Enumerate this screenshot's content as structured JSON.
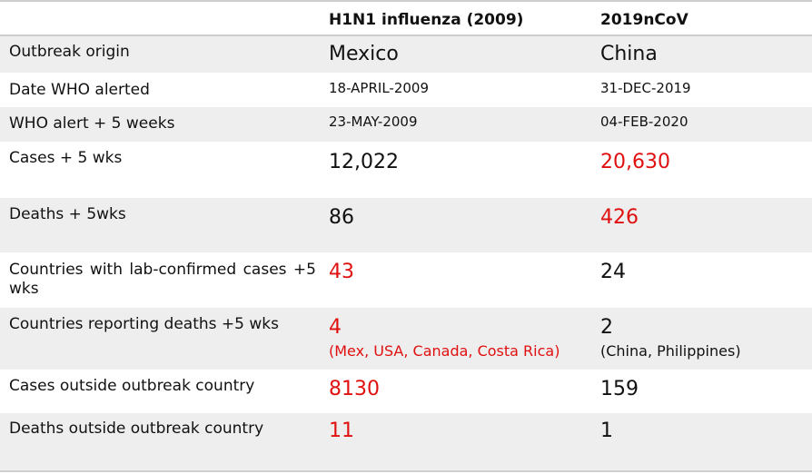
{
  "header": {
    "col2": "H1N1 influenza (2009)",
    "col3": "2019nCoV"
  },
  "rows": [
    {
      "label": "Outbreak origin",
      "v1": "Mexico",
      "v2": "China"
    },
    {
      "label": "Date WHO alerted",
      "v1": "18-APRIL-2009",
      "v2": "31-DEC-2019"
    },
    {
      "label": "WHO alert + 5 weeks",
      "v1": "23-MAY-2009",
      "v2": "04-FEB-2020"
    },
    {
      "label": "Cases + 5 wks",
      "v1": "12,022",
      "v2": "20,630"
    },
    {
      "label": "Deaths + 5wks",
      "v1": "86",
      "v2": "426"
    },
    {
      "label": "Countries with lab-confirmed cases +5 wks",
      "v1": "43",
      "v2": "24"
    },
    {
      "label": "Countries reporting deaths +5 wks",
      "v1": "4",
      "v1_note": "(Mex, USA, Canada, Costa Rica)",
      "v2": "2",
      "v2_note": "(China, Philippines)"
    },
    {
      "label": "Cases outside outbreak country",
      "v1": "8130",
      "v2": "159"
    },
    {
      "label": "Deaths outside outbreak country",
      "v1": "11",
      "v2": "1"
    }
  ],
  "colors": {
    "highlight": "#e01010",
    "text": "#111111",
    "stripe": "#eeeeee",
    "rule": "#cfcfcf"
  }
}
